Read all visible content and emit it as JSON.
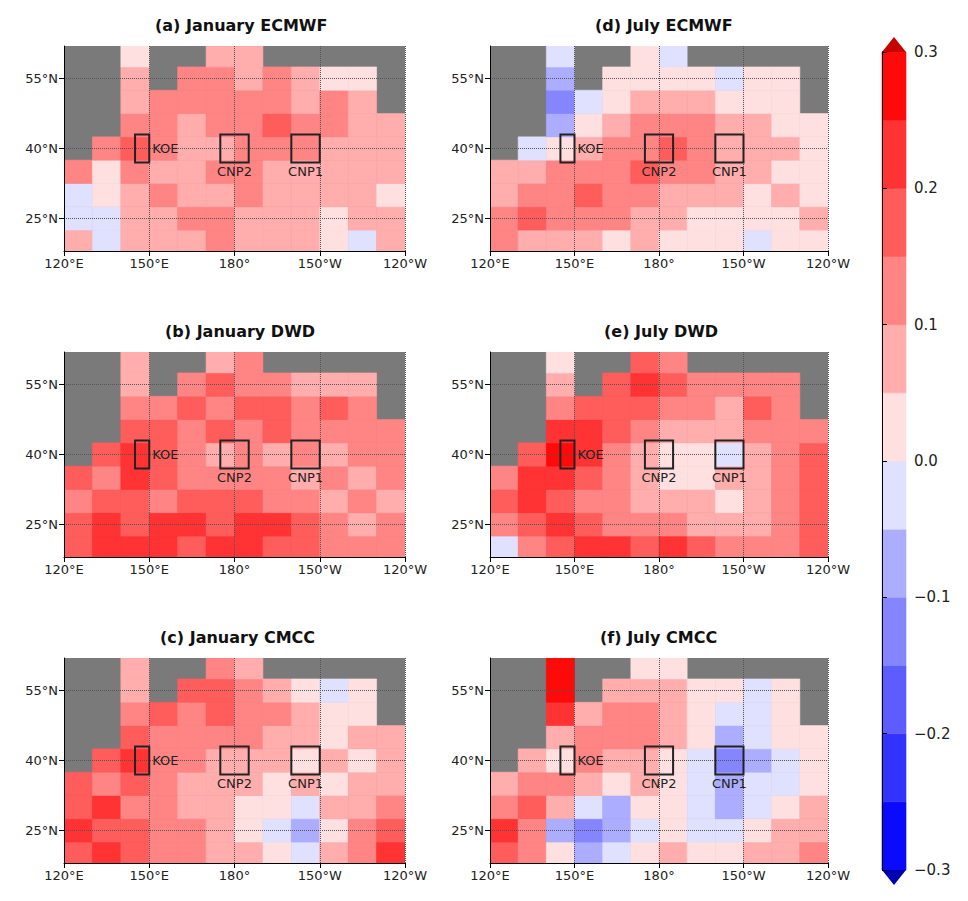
{
  "chart_data": {
    "type": "heatmap",
    "grid": true,
    "lon": [
      125,
      135,
      145,
      155,
      165,
      175,
      185,
      195,
      205,
      215,
      225,
      235
    ],
    "lat": [
      20,
      25,
      30,
      35,
      40,
      45,
      50,
      55,
      60
    ],
    "xlim": [
      120,
      240
    ],
    "xticks": [
      {
        "value": 120,
        "label": "120°E"
      },
      {
        "value": 150,
        "label": "150°E"
      },
      {
        "value": 180,
        "label": "180°"
      },
      {
        "value": 210,
        "label": "150°W"
      },
      {
        "value": 240,
        "label": "120°W"
      }
    ],
    "ylim": [
      18,
      62
    ],
    "yticks": [
      {
        "value": 25,
        "label": "25°N"
      },
      {
        "value": 40,
        "label": "40°N"
      },
      {
        "value": 55,
        "label": "55°N"
      }
    ],
    "boxes": [
      {
        "name": "KOE",
        "lon": [
          145,
          150
        ],
        "lat": [
          37,
          43
        ]
      },
      {
        "name": "CNP2",
        "lon": [
          175,
          185
        ],
        "lat": [
          37,
          43
        ]
      },
      {
        "name": "CNP1",
        "lon": [
          200,
          210
        ],
        "lat": [
          37,
          43
        ]
      }
    ],
    "colorbar": {
      "range": [
        -0.3,
        0.3
      ],
      "ticks": [
        {
          "value": -0.3,
          "label": "−0.3"
        },
        {
          "value": -0.2,
          "label": "−0.2"
        },
        {
          "value": -0.1,
          "label": "−0.1"
        },
        {
          "value": 0,
          "label": "0.0"
        },
        0.1,
        0.2,
        0.3
      ],
      "levels": [
        -0.3,
        -0.25,
        -0.2,
        -0.15,
        -0.1,
        -0.05,
        0,
        0.05,
        0.1,
        0.15,
        0.2,
        0.25,
        0.3
      ],
      "colors": [
        "#0a0aff",
        "#3333ff",
        "#5c5cff",
        "#8585ff",
        "#adadff",
        "#e0e0ff",
        "#ffe0e0",
        "#ffadad",
        "#ff8585",
        "#ff5c5c",
        "#ff3333",
        "#ff0a0a"
      ],
      "under_color": "#0000b0",
      "over_color": "#c80000"
    },
    "panels": [
      {
        "title": "(a) January ECMWF",
        "values": [
          [
            0.05,
            -0.03,
            0.05,
            0.08,
            0.05,
            0.1,
            0.06,
            0.08,
            0.05,
            0.03,
            -0.03,
            0.05
          ],
          [
            -0.05,
            -0.03,
            0.05,
            0.08,
            0.1,
            0.12,
            0.08,
            0.05,
            0.06,
            0.03,
            0.05,
            0.08
          ],
          [
            -0.05,
            0.02,
            0.05,
            0.1,
            0.08,
            0.05,
            0.1,
            0.08,
            0.05,
            0.06,
            0.05,
            0.03
          ],
          [
            0.1,
            0.03,
            0.1,
            0.08,
            0.05,
            0.1,
            0.12,
            0.05,
            0.08,
            0.05,
            0.06,
            0.05
          ],
          [
            null,
            0.12,
            0.18,
            0.1,
            0.08,
            0.06,
            0.1,
            0.12,
            0.1,
            0.08,
            0.06,
            0.05
          ],
          [
            null,
            null,
            0.12,
            0.1,
            0.08,
            0.1,
            0.12,
            0.15,
            0.1,
            0.12,
            0.08,
            0.06
          ],
          [
            null,
            null,
            0.08,
            0.1,
            0.12,
            0.1,
            0.1,
            0.12,
            0.08,
            0.1,
            0.05,
            null
          ],
          [
            null,
            null,
            0.05,
            null,
            0.1,
            0.12,
            0.08,
            0.1,
            0.05,
            0.03,
            0.02,
            null
          ],
          [
            null,
            null,
            0.03,
            null,
            null,
            0.05,
            0.08,
            null,
            null,
            null,
            null,
            null
          ]
        ]
      },
      {
        "title": "(b) January DWD",
        "values": [
          [
            0.15,
            0.2,
            0.22,
            0.2,
            0.18,
            0.22,
            0.2,
            0.18,
            0.15,
            0.12,
            0.1,
            0.12
          ],
          [
            0.18,
            0.2,
            0.15,
            0.22,
            0.2,
            0.18,
            0.2,
            0.22,
            0.15,
            0.1,
            0.08,
            0.12
          ],
          [
            0.12,
            0.18,
            0.15,
            0.12,
            0.15,
            0.18,
            0.15,
            0.12,
            0.1,
            0.08,
            0.1,
            0.08
          ],
          [
            0.15,
            0.12,
            0.2,
            0.15,
            0.12,
            0.1,
            0.12,
            0.1,
            0.08,
            0.1,
            0.08,
            0.1
          ],
          [
            null,
            0.15,
            0.22,
            0.15,
            0.1,
            0.08,
            0.1,
            0.08,
            0.1,
            0.08,
            0.1,
            0.12
          ],
          [
            null,
            null,
            0.18,
            0.15,
            0.12,
            0.15,
            0.12,
            0.15,
            0.12,
            0.1,
            0.12,
            0.1
          ],
          [
            null,
            null,
            0.1,
            0.12,
            0.15,
            0.12,
            0.15,
            0.18,
            0.12,
            0.15,
            0.1,
            null
          ],
          [
            null,
            null,
            0.08,
            null,
            0.12,
            0.15,
            0.12,
            0.1,
            0.08,
            0.06,
            0.05,
            null
          ],
          [
            null,
            null,
            0.05,
            null,
            null,
            0.08,
            0.1,
            null,
            null,
            null,
            null,
            null
          ]
        ]
      },
      {
        "title": "(c) January CMCC",
        "values": [
          [
            0.15,
            0.2,
            0.15,
            0.12,
            0.1,
            0.08,
            0.05,
            0.0,
            -0.05,
            0.05,
            0.12,
            0.2
          ],
          [
            0.2,
            0.18,
            0.15,
            0.12,
            0.1,
            0.08,
            0.0,
            -0.05,
            -0.08,
            0.02,
            0.1,
            0.15
          ],
          [
            0.15,
            0.2,
            0.12,
            0.1,
            0.08,
            0.05,
            0.03,
            0.0,
            -0.03,
            0.05,
            0.08,
            0.12
          ],
          [
            0.18,
            0.12,
            0.15,
            0.12,
            0.08,
            0.05,
            0.05,
            0.03,
            0.05,
            0.02,
            0.05,
            0.08
          ],
          [
            null,
            0.15,
            0.2,
            0.12,
            0.1,
            0.05,
            0.08,
            0.05,
            0.03,
            0.05,
            0.03,
            0.05
          ],
          [
            null,
            null,
            0.15,
            0.12,
            0.1,
            0.12,
            0.1,
            0.08,
            0.05,
            0.03,
            0.05,
            0.05
          ],
          [
            null,
            null,
            0.1,
            0.15,
            0.12,
            0.15,
            0.12,
            0.1,
            0.05,
            0.0,
            0.03,
            null
          ],
          [
            null,
            null,
            0.05,
            null,
            0.15,
            0.18,
            0.12,
            0.08,
            0.0,
            -0.05,
            0.02,
            null
          ],
          [
            null,
            null,
            0.08,
            null,
            null,
            0.1,
            0.05,
            null,
            null,
            null,
            null,
            null
          ]
        ]
      },
      {
        "title": "(d) July ECMWF",
        "values": [
          [
            0.1,
            0.05,
            0.08,
            0.05,
            0.03,
            0.05,
            0.03,
            0.02,
            0.0,
            -0.02,
            0.0,
            0.03
          ],
          [
            0.12,
            0.15,
            0.12,
            0.1,
            0.12,
            0.08,
            0.05,
            0.03,
            0.02,
            0.0,
            0.02,
            0.05
          ],
          [
            0.08,
            0.1,
            0.12,
            0.15,
            0.12,
            0.1,
            0.08,
            0.05,
            0.05,
            0.03,
            0.05,
            0.02
          ],
          [
            0.05,
            0.08,
            0.1,
            0.12,
            0.12,
            0.15,
            0.12,
            0.1,
            0.05,
            0.05,
            0.03,
            0.02
          ],
          [
            null,
            -0.05,
            0.0,
            0.08,
            0.1,
            0.12,
            0.15,
            0.12,
            0.08,
            0.05,
            0.05,
            0.02
          ],
          [
            null,
            null,
            -0.08,
            0.0,
            0.05,
            0.1,
            0.12,
            0.1,
            0.08,
            0.05,
            0.03,
            0.02
          ],
          [
            null,
            null,
            -0.12,
            -0.05,
            0.02,
            0.05,
            0.08,
            0.05,
            0.03,
            0.02,
            0.0,
            null
          ],
          [
            null,
            null,
            -0.1,
            null,
            0.0,
            0.03,
            0.02,
            0.0,
            -0.02,
            0.0,
            0.02,
            null
          ],
          [
            null,
            null,
            -0.05,
            null,
            null,
            0.0,
            -0.02,
            null,
            null,
            null,
            null,
            null
          ]
        ]
      },
      {
        "title": "(e) July DWD",
        "values": [
          [
            -0.05,
            0.1,
            0.15,
            0.2,
            0.22,
            0.18,
            0.2,
            0.15,
            0.1,
            0.12,
            0.1,
            0.15
          ],
          [
            0.12,
            0.18,
            0.2,
            0.15,
            0.12,
            0.1,
            0.12,
            0.08,
            0.05,
            0.08,
            0.12,
            0.15
          ],
          [
            0.15,
            0.2,
            0.18,
            0.12,
            0.1,
            0.08,
            0.05,
            0.05,
            0.03,
            0.05,
            0.1,
            0.15
          ],
          [
            0.1,
            0.22,
            0.2,
            0.15,
            0.1,
            0.05,
            0.03,
            0.0,
            0.05,
            0.08,
            0.12,
            0.18
          ],
          [
            null,
            0.15,
            0.25,
            0.2,
            0.12,
            0.08,
            0.03,
            0.0,
            -0.05,
            0.05,
            0.1,
            0.15
          ],
          [
            null,
            null,
            0.2,
            0.22,
            0.15,
            0.12,
            0.08,
            0.05,
            0.05,
            0.1,
            0.12,
            0.12
          ],
          [
            null,
            null,
            0.1,
            0.15,
            0.18,
            0.15,
            0.12,
            0.1,
            0.08,
            0.15,
            0.12,
            null
          ],
          [
            null,
            null,
            0.05,
            null,
            0.15,
            0.2,
            0.15,
            0.12,
            0.1,
            0.12,
            0.1,
            null
          ],
          [
            null,
            null,
            0.03,
            null,
            null,
            0.15,
            0.12,
            null,
            null,
            null,
            null,
            null
          ]
        ]
      },
      {
        "title": "(f) July CMCC",
        "values": [
          [
            0.15,
            0.1,
            0.0,
            -0.1,
            -0.05,
            0.0,
            0.05,
            0.02,
            0.0,
            0.05,
            0.08,
            0.1
          ],
          [
            0.2,
            0.1,
            -0.08,
            -0.15,
            -0.1,
            -0.05,
            0.0,
            -0.03,
            -0.05,
            0.0,
            0.05,
            0.08
          ],
          [
            0.12,
            0.15,
            0.05,
            -0.05,
            -0.08,
            0.0,
            0.02,
            -0.05,
            -0.08,
            -0.03,
            0.0,
            0.05
          ],
          [
            0.08,
            0.1,
            0.1,
            0.05,
            0.03,
            0.05,
            0.03,
            -0.05,
            -0.1,
            -0.05,
            -0.02,
            0.02
          ],
          [
            null,
            0.05,
            0.03,
            0.1,
            0.08,
            0.05,
            0.02,
            -0.03,
            -0.12,
            -0.08,
            -0.03,
            0.0
          ],
          [
            null,
            null,
            0.08,
            0.1,
            0.12,
            0.1,
            0.05,
            0.0,
            -0.08,
            -0.05,
            0.0,
            0.02
          ],
          [
            null,
            null,
            0.2,
            0.08,
            0.1,
            0.12,
            0.08,
            0.03,
            -0.03,
            -0.05,
            0.02,
            null
          ],
          [
            null,
            null,
            0.28,
            null,
            0.05,
            0.08,
            0.05,
            0.02,
            0.0,
            -0.03,
            0.0,
            null
          ],
          [
            null,
            null,
            0.25,
            null,
            null,
            0.03,
            0.02,
            null,
            null,
            null,
            null,
            null
          ]
        ]
      }
    ]
  }
}
